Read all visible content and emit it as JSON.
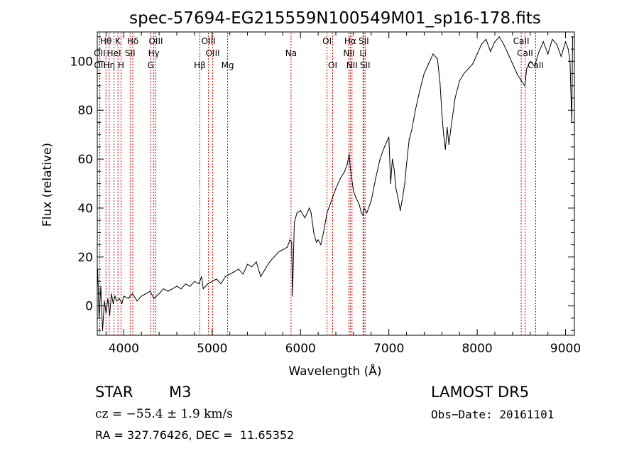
{
  "chart_data": {
    "type": "line",
    "title": "spec-57694-EG215559N100549M01_sp16-178.fits",
    "xlabel": "Wavelength (Å)",
    "ylabel": "Flux (relative)",
    "xlim": [
      3700,
      9100
    ],
    "ylim": [
      -12,
      112
    ],
    "xticks": [
      4000,
      5000,
      6000,
      7000,
      8000,
      9000
    ],
    "yticks": [
      0,
      20,
      40,
      60,
      80,
      100
    ],
    "grid": false,
    "line_color": "#000000",
    "marker_color": "#cc0000",
    "series": [
      {
        "x": [
          3705,
          3720,
          3740,
          3760,
          3780,
          3800,
          3820,
          3840,
          3860,
          3880,
          3900,
          3920,
          3950,
          3980,
          4000,
          4050,
          4100,
          4150,
          4200,
          4250,
          4300,
          4340,
          4400,
          4450,
          4500,
          4550,
          4600,
          4650,
          4700,
          4750,
          4800,
          4850,
          4880,
          4900,
          4950,
          5000,
          5050,
          5100,
          5150,
          5200,
          5250,
          5300,
          5350,
          5400,
          5450,
          5500,
          5550,
          5600,
          5650,
          5700,
          5750,
          5800,
          5850,
          5880,
          5900,
          5910,
          5930,
          5960,
          6000,
          6050,
          6100,
          6120,
          6150,
          6180,
          6200,
          6230,
          6260,
          6300,
          6350,
          6400,
          6450,
          6500,
          6530,
          6550,
          6563,
          6580,
          6600,
          6630,
          6660,
          6690,
          6710,
          6720,
          6750,
          6800,
          6850,
          6900,
          6950,
          7000,
          7020,
          7040,
          7060,
          7080,
          7100,
          7130,
          7150,
          7180,
          7200,
          7230,
          7260,
          7300,
          7350,
          7400,
          7450,
          7500,
          7550,
          7580,
          7600,
          7620,
          7640,
          7660,
          7680,
          7700,
          7750,
          7800,
          7850,
          7900,
          7950,
          8000,
          8050,
          8100,
          8150,
          8200,
          8250,
          8300,
          8350,
          8400,
          8450,
          8500,
          8540,
          8560,
          8600,
          8650,
          8700,
          8750,
          8800,
          8850,
          8900,
          8950,
          9000,
          9030,
          9050,
          9070,
          9080
        ],
        "y": [
          15,
          -5,
          8,
          -10,
          2,
          -3,
          3,
          -4,
          5,
          1,
          4,
          2,
          3,
          1,
          4,
          3,
          5,
          2,
          4,
          5,
          6,
          3,
          5,
          7,
          6,
          7,
          8,
          7,
          9,
          8,
          10,
          9,
          12,
          7,
          9,
          10,
          11,
          9,
          12,
          13,
          14,
          15,
          13,
          17,
          16,
          18,
          12,
          15,
          18,
          20,
          22,
          23,
          24,
          27,
          26,
          4,
          34,
          38,
          39,
          36,
          40,
          38,
          30,
          26,
          27,
          25,
          30,
          38,
          43,
          48,
          52,
          55,
          58,
          62,
          57,
          52,
          47,
          44,
          42,
          38,
          37,
          40,
          38,
          43,
          52,
          60,
          65,
          69,
          50,
          60,
          56,
          48,
          45,
          39,
          43,
          50,
          58,
          68,
          72,
          80,
          88,
          95,
          99,
          103,
          101,
          91,
          79,
          70,
          64,
          73,
          66,
          72,
          85,
          92,
          95,
          97,
          99,
          103,
          107,
          109,
          104,
          108,
          110,
          107,
          103,
          99,
          95,
          92,
          90,
          97,
          100,
          98,
          104,
          108,
          103,
          109,
          107,
          102,
          108,
          105,
          100,
          75,
          110
        ]
      }
    ],
    "lines_labeled": [
      {
        "label": "Hδ",
        "x": 4102,
        "row": 1
      },
      {
        "label": "OII",
        "x": 3727,
        "row": 2
      },
      {
        "label": "OII",
        "x": 3729,
        "row": 3
      },
      {
        "label": "Hθ",
        "x": 3798,
        "row": 1
      },
      {
        "label": "Hη",
        "x": 3835,
        "row": 3
      },
      {
        "label": "K",
        "x": 3934,
        "row": 1
      },
      {
        "label": "H",
        "x": 3969,
        "row": 3
      },
      {
        "label": "HeI",
        "x": 3889,
        "row": 2
      },
      {
        "label": "SII",
        "x": 4072,
        "row": 2
      },
      {
        "label": "OIII",
        "x": 4363,
        "row": 1
      },
      {
        "label": "Hγ",
        "x": 4340,
        "row": 2
      },
      {
        "label": "G",
        "x": 4305,
        "row": 3
      },
      {
        "label": "Hβ",
        "x": 4861,
        "row": 3
      },
      {
        "label": "OIII",
        "x": 4959,
        "row": 1
      },
      {
        "label": "OIII",
        "x": 5007,
        "row": 2
      },
      {
        "label": "Mg",
        "x": 5175,
        "row": 3
      },
      {
        "label": "Na",
        "x": 5893,
        "row": 2
      },
      {
        "label": "OI",
        "x": 6300,
        "row": 1
      },
      {
        "label": "OI",
        "x": 6364,
        "row": 3
      },
      {
        "label": "Hα",
        "x": 6563,
        "row": 1
      },
      {
        "label": "NII",
        "x": 6548,
        "row": 2
      },
      {
        "label": "NII",
        "x": 6583,
        "row": 3
      },
      {
        "label": "SII",
        "x": 6716,
        "row": 1
      },
      {
        "label": "Li",
        "x": 6708,
        "row": 2
      },
      {
        "label": "SII",
        "x": 6731,
        "row": 3
      },
      {
        "label": "CaII",
        "x": 8498,
        "row": 1
      },
      {
        "label": "CaII",
        "x": 8542,
        "row": 2
      },
      {
        "label": "CaII",
        "x": 8662,
        "row": 3
      }
    ]
  },
  "footer": {
    "object_class": "STAR",
    "subclass": "M3",
    "survey": "LAMOST DR5",
    "cz": "cz = −55.4 ± 1.9 km/s",
    "obs_date": "Obs−Date: 20161101",
    "coords": "RA = 327.76426, DEC =  11.65352"
  }
}
